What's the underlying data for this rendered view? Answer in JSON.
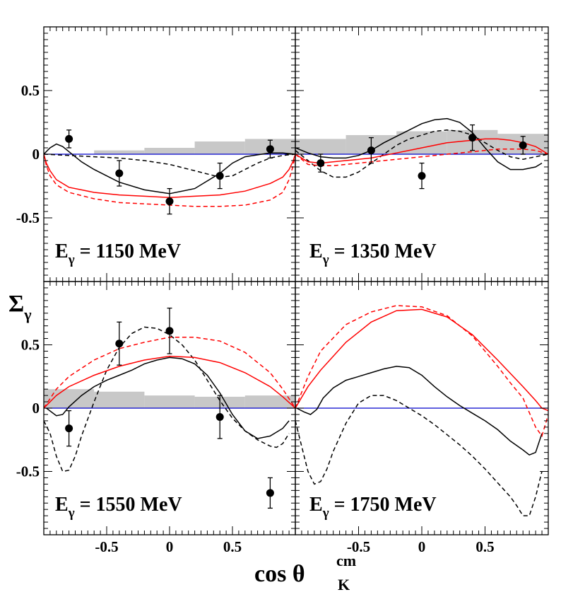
{
  "chart_data": {
    "type": "line",
    "layout": "2x2 panels, shared axes",
    "y_axis_title": "Σ",
    "y_axis_title_sub": "γ",
    "x_axis_title": "cos θ",
    "x_axis_title_sup": "cm",
    "x_axis_title_sub": "K",
    "xlim": [
      -1.0,
      1.0
    ],
    "ylim": [
      -1.0,
      1.0
    ],
    "x_ticks": [
      "-0.5",
      "0",
      "0.5"
    ],
    "y_ticks": [
      "-0.5",
      "0",
      "0.5"
    ],
    "colors": {
      "black": "#000000",
      "red": "#ff0000",
      "zero_line": "#0000cc",
      "syst_band": "#c8c8c8"
    },
    "series_legend": [
      {
        "name": "black solid",
        "color": "black",
        "dash": false
      },
      {
        "name": "black dashed",
        "color": "black",
        "dash": true
      },
      {
        "name": "red solid",
        "color": "red",
        "dash": false
      },
      {
        "name": "red dashed",
        "color": "red",
        "dash": true
      }
    ],
    "panels": [
      {
        "id": "p1150",
        "label": "E",
        "label_sub": "γ",
        "label_value": " = 1150 MeV",
        "data_points": [
          {
            "x": -0.8,
            "y": 0.12,
            "err": 0.07
          },
          {
            "x": -0.4,
            "y": -0.15,
            "err": 0.1
          },
          {
            "x": 0.0,
            "y": -0.37,
            "err": 0.1
          },
          {
            "x": 0.4,
            "y": -0.17,
            "err": 0.1
          },
          {
            "x": 0.8,
            "y": 0.04,
            "err": 0.07
          }
        ],
        "syst_band": [
          {
            "x0": -0.6,
            "x1": -0.2,
            "h": 0.03
          },
          {
            "x0": -0.2,
            "x1": 0.2,
            "h": 0.05
          },
          {
            "x0": 0.2,
            "x1": 0.6,
            "h": 0.1
          },
          {
            "x0": 0.6,
            "x1": 1.0,
            "h": 0.12
          }
        ],
        "curves": [
          {
            "color": "black",
            "dash": false,
            "x": [
              -1.0,
              -0.95,
              -0.9,
              -0.85,
              -0.8,
              -0.7,
              -0.6,
              -0.4,
              -0.2,
              0.0,
              0.2,
              0.4,
              0.5,
              0.6,
              0.8,
              0.9,
              1.0
            ],
            "y": [
              0.0,
              0.05,
              0.08,
              0.06,
              0.02,
              -0.06,
              -0.12,
              -0.22,
              -0.28,
              -0.31,
              -0.27,
              -0.15,
              -0.07,
              -0.02,
              0.01,
              0.01,
              0.0
            ]
          },
          {
            "color": "black",
            "dash": true,
            "x": [
              -1.0,
              -0.8,
              -0.6,
              -0.4,
              -0.2,
              0.0,
              0.2,
              0.4,
              0.5,
              0.6,
              0.7,
              0.8,
              0.9,
              1.0
            ],
            "y": [
              0.0,
              -0.01,
              -0.02,
              -0.03,
              -0.05,
              -0.08,
              -0.13,
              -0.18,
              -0.17,
              -0.12,
              -0.07,
              -0.03,
              -0.01,
              0.0
            ]
          },
          {
            "color": "red",
            "dash": false,
            "x": [
              -1.0,
              -0.98,
              -0.95,
              -0.9,
              -0.8,
              -0.6,
              -0.4,
              -0.2,
              0.0,
              0.2,
              0.4,
              0.6,
              0.8,
              0.9,
              0.95,
              0.98,
              1.0
            ],
            "y": [
              0.0,
              -0.07,
              -0.13,
              -0.2,
              -0.26,
              -0.3,
              -0.32,
              -0.33,
              -0.34,
              -0.33,
              -0.32,
              -0.29,
              -0.23,
              -0.18,
              -0.12,
              -0.06,
              0.0
            ]
          },
          {
            "color": "red",
            "dash": true,
            "x": [
              -1.0,
              -0.98,
              -0.95,
              -0.9,
              -0.8,
              -0.6,
              -0.4,
              -0.2,
              0.0,
              0.2,
              0.4,
              0.6,
              0.8,
              0.9,
              0.95,
              0.98,
              1.0
            ],
            "y": [
              0.0,
              -0.09,
              -0.17,
              -0.24,
              -0.3,
              -0.35,
              -0.38,
              -0.39,
              -0.4,
              -0.41,
              -0.41,
              -0.4,
              -0.36,
              -0.3,
              -0.2,
              -0.1,
              0.0
            ]
          }
        ]
      },
      {
        "id": "p1350",
        "label": "E",
        "label_sub": "γ",
        "label_value": " = 1350 MeV",
        "data_points": [
          {
            "x": -0.8,
            "y": -0.07,
            "err": 0.07
          },
          {
            "x": -0.4,
            "y": 0.03,
            "err": 0.1
          },
          {
            "x": 0.0,
            "y": -0.17,
            "err": 0.1
          },
          {
            "x": 0.4,
            "y": 0.13,
            "err": 0.1
          },
          {
            "x": 0.8,
            "y": 0.07,
            "err": 0.07
          }
        ],
        "syst_band": [
          {
            "x0": -1.0,
            "x1": -0.6,
            "h": 0.12
          },
          {
            "x0": -0.6,
            "x1": -0.2,
            "h": 0.15
          },
          {
            "x0": -0.2,
            "x1": 0.2,
            "h": 0.18
          },
          {
            "x0": 0.2,
            "x1": 0.6,
            "h": 0.19
          },
          {
            "x0": 0.6,
            "x1": 1.0,
            "h": 0.16
          }
        ],
        "curves": [
          {
            "color": "black",
            "dash": false,
            "x": [
              -1.0,
              -0.9,
              -0.8,
              -0.7,
              -0.6,
              -0.5,
              -0.4,
              -0.3,
              -0.2,
              -0.1,
              0.0,
              0.1,
              0.2,
              0.3,
              0.4,
              0.5,
              0.6,
              0.7,
              0.8,
              0.9,
              0.95
            ],
            "y": [
              0.05,
              0.01,
              -0.02,
              -0.03,
              -0.03,
              -0.01,
              0.03,
              0.09,
              0.14,
              0.19,
              0.24,
              0.27,
              0.28,
              0.25,
              0.17,
              0.05,
              -0.06,
              -0.12,
              -0.12,
              -0.1,
              -0.07
            ]
          },
          {
            "color": "black",
            "dash": true,
            "x": [
              -1.0,
              -0.9,
              -0.8,
              -0.7,
              -0.6,
              -0.5,
              -0.4,
              -0.3,
              -0.2,
              -0.1,
              0.0,
              0.1,
              0.2,
              0.3,
              0.4,
              0.5,
              0.6,
              0.7,
              0.8,
              0.9,
              1.0
            ],
            "y": [
              0.03,
              -0.05,
              -0.13,
              -0.18,
              -0.18,
              -0.14,
              -0.07,
              0.0,
              0.07,
              0.12,
              0.15,
              0.18,
              0.19,
              0.18,
              0.15,
              0.09,
              0.03,
              -0.02,
              -0.04,
              -0.02,
              0.0
            ]
          },
          {
            "color": "red",
            "dash": false,
            "x": [
              -1.0,
              -0.9,
              -0.8,
              -0.7,
              -0.6,
              -0.5,
              -0.4,
              -0.3,
              -0.2,
              -0.1,
              0.0,
              0.1,
              0.2,
              0.3,
              0.4,
              0.5,
              0.6,
              0.7,
              0.8,
              0.9,
              1.0
            ],
            "y": [
              0.0,
              -0.06,
              -0.07,
              -0.06,
              -0.05,
              -0.04,
              -0.03,
              -0.01,
              0.01,
              0.03,
              0.05,
              0.07,
              0.09,
              0.1,
              0.11,
              0.12,
              0.12,
              0.11,
              0.09,
              0.06,
              0.0
            ]
          },
          {
            "color": "red",
            "dash": true,
            "x": [
              -1.0,
              -0.9,
              -0.8,
              -0.7,
              -0.6,
              -0.5,
              -0.4,
              -0.3,
              -0.2,
              -0.1,
              0.0,
              0.1,
              0.2,
              0.3,
              0.4,
              0.5,
              0.6,
              0.7,
              0.8,
              0.9,
              1.0
            ],
            "y": [
              0.0,
              -0.08,
              -0.09,
              -0.09,
              -0.08,
              -0.07,
              -0.06,
              -0.05,
              -0.04,
              -0.03,
              -0.02,
              -0.01,
              0.0,
              0.01,
              0.02,
              0.03,
              0.04,
              0.04,
              0.04,
              0.03,
              0.0
            ]
          }
        ]
      },
      {
        "id": "p1550",
        "label": "E",
        "label_sub": "γ",
        "label_value": " = 1550 MeV",
        "data_points": [
          {
            "x": -0.8,
            "y": -0.16,
            "err": 0.14
          },
          {
            "x": -0.4,
            "y": 0.51,
            "err": 0.17
          },
          {
            "x": 0.0,
            "y": 0.61,
            "err": 0.18
          },
          {
            "x": 0.4,
            "y": -0.07,
            "err": 0.17
          },
          {
            "x": 0.8,
            "y": -0.67,
            "err": 0.12
          }
        ],
        "syst_band": [
          {
            "x0": -1.0,
            "x1": -0.6,
            "h": 0.15
          },
          {
            "x0": -0.6,
            "x1": -0.2,
            "h": 0.13
          },
          {
            "x0": -0.2,
            "x1": 0.2,
            "h": 0.1
          },
          {
            "x0": 0.2,
            "x1": 0.6,
            "h": 0.09
          },
          {
            "x0": 0.6,
            "x1": 1.0,
            "h": 0.1
          }
        ],
        "curves": [
          {
            "color": "black",
            "dash": false,
            "x": [
              -0.98,
              -0.9,
              -0.85,
              -0.8,
              -0.7,
              -0.6,
              -0.5,
              -0.4,
              -0.3,
              -0.2,
              -0.1,
              0.0,
              0.1,
              0.2,
              0.3,
              0.4,
              0.5,
              0.6,
              0.7,
              0.8,
              0.9,
              0.95
            ],
            "y": [
              0.0,
              -0.06,
              -0.05,
              0.01,
              0.1,
              0.17,
              0.22,
              0.26,
              0.3,
              0.35,
              0.38,
              0.4,
              0.39,
              0.35,
              0.26,
              0.12,
              -0.05,
              -0.18,
              -0.24,
              -0.22,
              -0.16,
              -0.1
            ]
          },
          {
            "color": "black",
            "dash": true,
            "x": [
              -1.0,
              -0.95,
              -0.9,
              -0.85,
              -0.8,
              -0.75,
              -0.7,
              -0.6,
              -0.5,
              -0.4,
              -0.3,
              -0.2,
              -0.1,
              0.0,
              0.1,
              0.2,
              0.3,
              0.4,
              0.5,
              0.6,
              0.7,
              0.8,
              0.85,
              0.9,
              0.95
            ],
            "y": [
              -0.1,
              -0.2,
              -0.38,
              -0.5,
              -0.49,
              -0.38,
              -0.22,
              0.05,
              0.3,
              0.48,
              0.59,
              0.64,
              0.63,
              0.58,
              0.5,
              0.38,
              0.22,
              0.06,
              -0.08,
              -0.18,
              -0.25,
              -0.3,
              -0.31,
              -0.28,
              -0.2
            ]
          },
          {
            "color": "red",
            "dash": false,
            "x": [
              -1.0,
              -0.9,
              -0.8,
              -0.6,
              -0.4,
              -0.2,
              0.0,
              0.2,
              0.4,
              0.6,
              0.8,
              0.9,
              1.0
            ],
            "y": [
              0.0,
              0.1,
              0.17,
              0.26,
              0.33,
              0.38,
              0.41,
              0.4,
              0.36,
              0.28,
              0.17,
              0.09,
              0.0
            ]
          },
          {
            "color": "red",
            "dash": true,
            "x": [
              -1.0,
              -0.9,
              -0.8,
              -0.6,
              -0.4,
              -0.2,
              0.0,
              0.2,
              0.4,
              0.6,
              0.8,
              0.9,
              1.0
            ],
            "y": [
              0.0,
              0.15,
              0.25,
              0.38,
              0.47,
              0.52,
              0.56,
              0.56,
              0.53,
              0.44,
              0.28,
              0.15,
              0.0
            ]
          }
        ]
      },
      {
        "id": "p1750",
        "label": "E",
        "label_sub": "γ",
        "label_value": " = 1750 MeV",
        "data_points": [],
        "syst_band": [],
        "curves": [
          {
            "color": "black",
            "dash": false,
            "x": [
              -0.99,
              -0.93,
              -0.88,
              -0.83,
              -0.78,
              -0.7,
              -0.6,
              -0.5,
              -0.4,
              -0.3,
              -0.2,
              -0.1,
              0.0,
              0.1,
              0.2,
              0.3,
              0.4,
              0.5,
              0.6,
              0.7,
              0.8,
              0.85,
              0.9,
              0.95
            ],
            "y": [
              0.0,
              -0.03,
              -0.05,
              -0.01,
              0.08,
              0.16,
              0.22,
              0.25,
              0.28,
              0.31,
              0.33,
              0.32,
              0.26,
              0.17,
              0.09,
              0.02,
              -0.04,
              -0.1,
              -0.17,
              -0.26,
              -0.33,
              -0.37,
              -0.35,
              -0.2
            ]
          },
          {
            "color": "black",
            "dash": true,
            "x": [
              -1.0,
              -0.95,
              -0.9,
              -0.85,
              -0.8,
              -0.75,
              -0.7,
              -0.6,
              -0.5,
              -0.4,
              -0.3,
              -0.2,
              -0.1,
              0.0,
              0.1,
              0.2,
              0.3,
              0.4,
              0.5,
              0.6,
              0.7,
              0.75,
              0.8,
              0.85,
              0.9,
              0.95
            ],
            "y": [
              -0.1,
              -0.3,
              -0.5,
              -0.6,
              -0.58,
              -0.48,
              -0.34,
              -0.12,
              0.04,
              0.1,
              0.1,
              0.06,
              0.0,
              -0.06,
              -0.13,
              -0.21,
              -0.29,
              -0.38,
              -0.48,
              -0.59,
              -0.7,
              -0.77,
              -0.85,
              -0.85,
              -0.7,
              -0.5
            ]
          },
          {
            "color": "red",
            "dash": false,
            "x": [
              -1.0,
              -0.9,
              -0.8,
              -0.6,
              -0.4,
              -0.2,
              0.0,
              0.2,
              0.4,
              0.6,
              0.8,
              0.9,
              0.95,
              1.0
            ],
            "y": [
              0.0,
              0.17,
              0.3,
              0.52,
              0.68,
              0.77,
              0.78,
              0.72,
              0.58,
              0.38,
              0.17,
              0.06,
              0.0,
              -0.02
            ]
          },
          {
            "color": "red",
            "dash": true,
            "x": [
              -1.0,
              -0.9,
              -0.8,
              -0.6,
              -0.4,
              -0.2,
              0.0,
              0.2,
              0.4,
              0.6,
              0.7,
              0.8,
              0.9,
              0.95,
              1.0
            ],
            "y": [
              0.0,
              0.25,
              0.45,
              0.66,
              0.76,
              0.81,
              0.8,
              0.73,
              0.57,
              0.33,
              0.2,
              0.08,
              -0.15,
              -0.22,
              -0.05
            ]
          }
        ]
      }
    ]
  }
}
